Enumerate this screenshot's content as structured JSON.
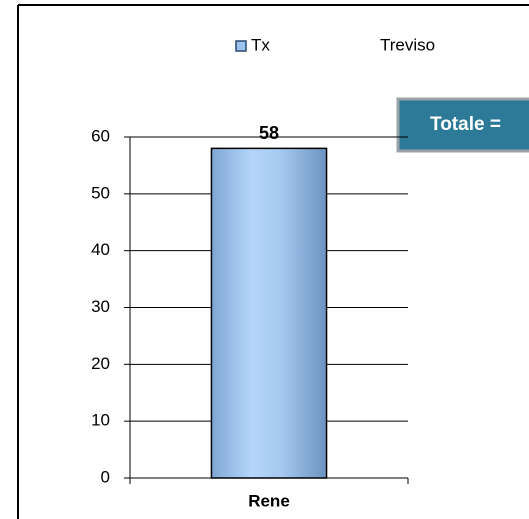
{
  "chart_data": {
    "type": "bar",
    "subtitle": "Treviso",
    "annotation": "Totale =",
    "categories": [
      "Rene"
    ],
    "series": [
      {
        "name": "Tx",
        "color": "#9cc3ee",
        "values": [
          58
        ]
      }
    ],
    "ylim": [
      0,
      60
    ],
    "yticks": [
      0,
      10,
      20,
      30,
      40,
      50,
      60
    ],
    "grid": true
  }
}
